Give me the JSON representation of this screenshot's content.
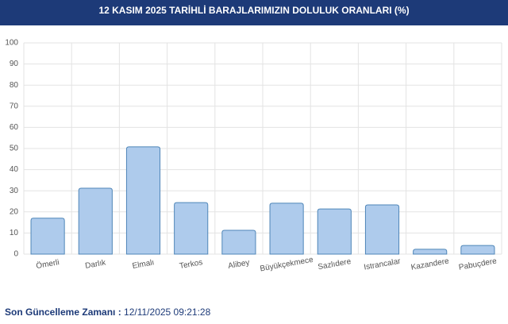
{
  "header": {
    "title": "12 KASIM 2025 TARİHLİ BARAJLARIMIZIN DOLULUK ORANLARI (%)"
  },
  "chart_data": {
    "type": "bar",
    "categories": [
      "Ömerli",
      "Darlık",
      "Elmalı",
      "Terkos",
      "Alibey",
      "Büyükçekmece",
      "Sazlıdere",
      "Istrancalar",
      "Kazandere",
      "Pabuçdere"
    ],
    "values": [
      17,
      31.2,
      50.8,
      24.4,
      11.3,
      24.1,
      21.4,
      23.3,
      2.3,
      4.1
    ],
    "color": "#aecbec",
    "border_color": "#4f86b8",
    "ylim": [
      0,
      100
    ],
    "yticks": [
      0,
      10,
      20,
      30,
      40,
      50,
      60,
      70,
      80,
      90,
      100
    ],
    "grid": true
  },
  "footer": {
    "label": "Son Güncelleme Zamanı :",
    "value": "12/11/2025 09:21:28"
  }
}
